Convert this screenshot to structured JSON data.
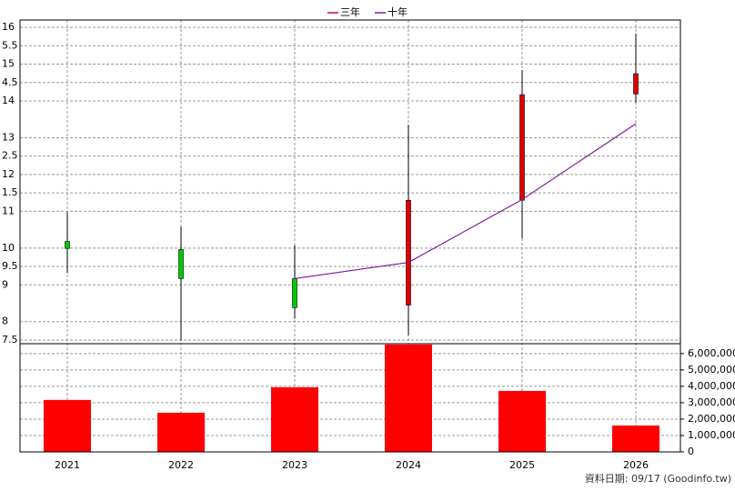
{
  "chart_data": [
    {
      "type": "candlestick",
      "open": [
        10.18,
        9.96,
        9.17,
        8.45,
        11.3,
        14.19
      ],
      "high": [
        10.98,
        10.58,
        10.08,
        13.35,
        14.84,
        15.83
      ],
      "low": [
        9.32,
        7.49,
        8.08,
        7.63,
        10.26,
        13.95
      ],
      "close": [
        9.99,
        9.17,
        8.38,
        11.3,
        14.17,
        14.74
      ],
      "up_color": "#e00000",
      "down_color": "#00cc00",
      "series": [
        {
          "name": "三年",
          "color": "#cc0066",
          "values": [
            null,
            null,
            9.17,
            9.61,
            11.32,
            13.38
          ]
        },
        {
          "name": "十年",
          "color": "#7a1fa8",
          "values": [
            null,
            null,
            9.17,
            9.61,
            11.32,
            13.38
          ]
        }
      ],
      "ylim": [
        7.4,
        16.2
      ],
      "yticks": [
        16,
        {
          "value": 15.5,
          "label": "5.5"
        },
        15,
        {
          "value": 14.5,
          "label": "4.5"
        },
        14,
        13,
        {
          "value": 12.5,
          "label": "2.5"
        },
        12,
        {
          "value": 11.5,
          "label": "1.5"
        },
        11,
        10,
        9.5,
        9,
        8,
        7.5
      ],
      "grid": true,
      "legend": "top"
    },
    {
      "type": "bar",
      "categories": [
        "2021",
        "2022",
        "2023",
        "2024",
        "2025",
        "2026"
      ],
      "values": [
        3170000,
        2390000,
        3940000,
        6550000,
        3720000,
        1610000
      ],
      "color": "#ff0000",
      "ylim": [
        0,
        6600000
      ],
      "yticks": [
        0,
        {
          "value": 1000000,
          "label": "1,000,000"
        },
        {
          "value": 2000000,
          "label": "2,000,000"
        },
        {
          "value": 3000000,
          "label": "3,000,000"
        },
        {
          "value": 4000000,
          "label": "4,000,000"
        },
        {
          "value": 5000000,
          "label": "5,000,000"
        },
        {
          "value": 6000000,
          "label": "6,000,000"
        }
      ],
      "grid": true
    }
  ],
  "source": "資料日期: 09/17  (Goodinfo.tw)"
}
